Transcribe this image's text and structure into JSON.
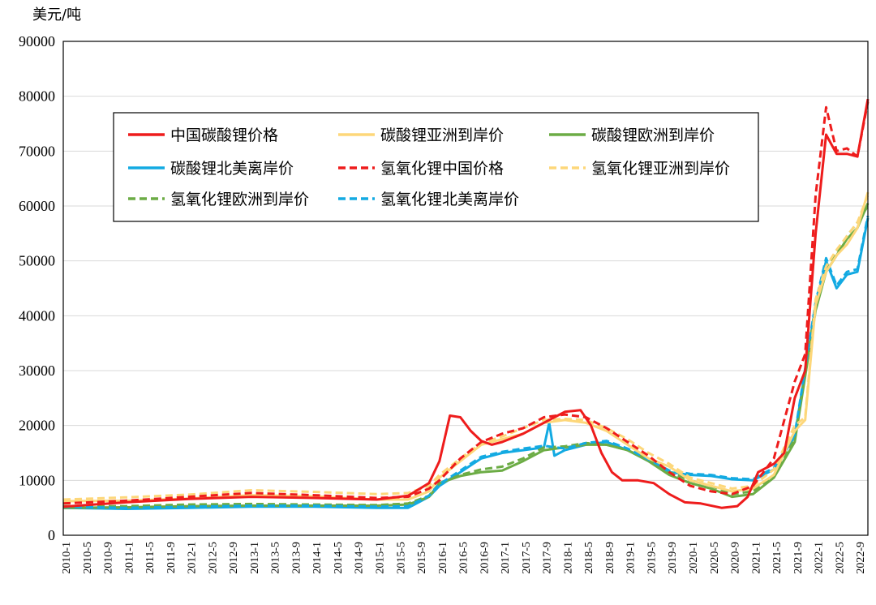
{
  "chart_data": {
    "type": "line",
    "ylabel": "美元/吨",
    "ylim": [
      0,
      90000
    ],
    "yticks": [
      0,
      10000,
      20000,
      30000,
      40000,
      50000,
      60000,
      70000,
      80000,
      90000
    ],
    "x_start": "2010-1",
    "x_end": "2022-11",
    "xticks": [
      "2010-1",
      "2010-5",
      "2010-9",
      "2011-1",
      "2011-5",
      "2011-9",
      "2012-1",
      "2012-5",
      "2012-9",
      "2013-1",
      "2013-5",
      "2013-9",
      "2014-1",
      "2014-5",
      "2014-9",
      "2015-1",
      "2015-5",
      "2015-9",
      "2016-1",
      "2016-5",
      "2016-9",
      "2017-1",
      "2017-5",
      "2017-9",
      "2018-1",
      "2018-5",
      "2018-9",
      "2019-1",
      "2019-5",
      "2019-9",
      "2020-1",
      "2020-5",
      "2020-9",
      "2021-1",
      "2021-5",
      "2021-9",
      "2022-1",
      "2022-5",
      "2022-9"
    ],
    "grid": "horizontal",
    "legend_position": "top-left",
    "series": [
      {
        "name": "中国碳酸锂价格",
        "color": "#ee1c1c",
        "dash": "solid",
        "points": [
          [
            "2010-1",
            5200
          ],
          [
            "2011-1",
            6000
          ],
          [
            "2012-1",
            6600
          ],
          [
            "2013-1",
            7000
          ],
          [
            "2014-1",
            6800
          ],
          [
            "2015-1",
            6500
          ],
          [
            "2015-7",
            7200
          ],
          [
            "2015-11",
            9500
          ],
          [
            "2016-1",
            13500
          ],
          [
            "2016-3",
            21800
          ],
          [
            "2016-5",
            21500
          ],
          [
            "2016-7",
            19000
          ],
          [
            "2016-9",
            17200
          ],
          [
            "2016-11",
            16500
          ],
          [
            "2017-1",
            17000
          ],
          [
            "2017-5",
            18500
          ],
          [
            "2017-9",
            20500
          ],
          [
            "2018-1",
            22500
          ],
          [
            "2018-4",
            22800
          ],
          [
            "2018-6",
            20000
          ],
          [
            "2018-8",
            15000
          ],
          [
            "2018-10",
            11500
          ],
          [
            "2018-12",
            10000
          ],
          [
            "2019-3",
            10000
          ],
          [
            "2019-6",
            9500
          ],
          [
            "2019-9",
            7500
          ],
          [
            "2019-12",
            6000
          ],
          [
            "2020-3",
            5800
          ],
          [
            "2020-7",
            5000
          ],
          [
            "2020-10",
            5300
          ],
          [
            "2020-12",
            7000
          ],
          [
            "2021-2",
            11500
          ],
          [
            "2021-5",
            13000
          ],
          [
            "2021-7",
            15000
          ],
          [
            "2021-9",
            25000
          ],
          [
            "2021-11",
            30000
          ],
          [
            "2022-1",
            55000
          ],
          [
            "2022-3",
            73000
          ],
          [
            "2022-5",
            69500
          ],
          [
            "2022-7",
            69500
          ],
          [
            "2022-9",
            69000
          ],
          [
            "2022-11",
            79500
          ]
        ]
      },
      {
        "name": "碳酸锂亚洲到岸价",
        "color": "#fdd77a",
        "dash": "solid",
        "points": [
          [
            "2010-1",
            6200
          ],
          [
            "2011-1",
            6300
          ],
          [
            "2012-1",
            6700
          ],
          [
            "2013-1",
            7300
          ],
          [
            "2014-1",
            7100
          ],
          [
            "2015-1",
            6500
          ],
          [
            "2015-7",
            6500
          ],
          [
            "2015-11",
            8000
          ],
          [
            "2016-1",
            10500
          ],
          [
            "2016-5",
            13500
          ],
          [
            "2016-9",
            16500
          ],
          [
            "2017-1",
            17500
          ],
          [
            "2017-5",
            18500
          ],
          [
            "2017-9",
            20500
          ],
          [
            "2018-1",
            21000
          ],
          [
            "2018-5",
            20500
          ],
          [
            "2018-9",
            19000
          ],
          [
            "2019-1",
            16500
          ],
          [
            "2019-5",
            14000
          ],
          [
            "2019-9",
            12500
          ],
          [
            "2020-1",
            10000
          ],
          [
            "2020-5",
            9000
          ],
          [
            "2020-9",
            8000
          ],
          [
            "2021-1",
            8500
          ],
          [
            "2021-5",
            11000
          ],
          [
            "2021-9",
            19000
          ],
          [
            "2021-11",
            21000
          ],
          [
            "2022-1",
            42000
          ],
          [
            "2022-3",
            48000
          ],
          [
            "2022-5",
            51000
          ],
          [
            "2022-7",
            53000
          ],
          [
            "2022-9",
            56000
          ],
          [
            "2022-11",
            62500
          ]
        ]
      },
      {
        "name": "碳酸锂欧洲到岸价",
        "color": "#6cac45",
        "dash": "solid",
        "points": [
          [
            "2010-1",
            5000
          ],
          [
            "2011-1",
            5100
          ],
          [
            "2012-1",
            5300
          ],
          [
            "2013-1",
            5400
          ],
          [
            "2014-1",
            5400
          ],
          [
            "2015-1",
            5400
          ],
          [
            "2015-7",
            5600
          ],
          [
            "2015-11",
            7000
          ],
          [
            "2016-1",
            9500
          ],
          [
            "2016-5",
            10800
          ],
          [
            "2016-9",
            11500
          ],
          [
            "2017-1",
            11800
          ],
          [
            "2017-5",
            13500
          ],
          [
            "2017-9",
            15500
          ],
          [
            "2018-1",
            16000
          ],
          [
            "2018-5",
            16500
          ],
          [
            "2018-9",
            16500
          ],
          [
            "2019-1",
            15500
          ],
          [
            "2019-5",
            13500
          ],
          [
            "2019-9",
            11000
          ],
          [
            "2020-1",
            9500
          ],
          [
            "2020-5",
            8500
          ],
          [
            "2020-9",
            7000
          ],
          [
            "2021-1",
            7500
          ],
          [
            "2021-5",
            10500
          ],
          [
            "2021-9",
            17000
          ],
          [
            "2022-1",
            41000
          ],
          [
            "2022-3",
            48000
          ],
          [
            "2022-5",
            51000
          ],
          [
            "2022-7",
            54000
          ],
          [
            "2022-9",
            56000
          ],
          [
            "2022-11",
            60500
          ]
        ]
      },
      {
        "name": "碳酸锂北美离岸价",
        "color": "#13aae2",
        "dash": "solid",
        "points": [
          [
            "2010-1",
            5000
          ],
          [
            "2011-1",
            4800
          ],
          [
            "2012-1",
            5000
          ],
          [
            "2013-1",
            5200
          ],
          [
            "2014-1",
            5200
          ],
          [
            "2015-1",
            5000
          ],
          [
            "2015-7",
            5000
          ],
          [
            "2015-11",
            7000
          ],
          [
            "2016-1",
            9000
          ],
          [
            "2016-5",
            11500
          ],
          [
            "2016-9",
            14000
          ],
          [
            "2017-1",
            15000
          ],
          [
            "2017-5",
            15500
          ],
          [
            "2017-9",
            16000
          ],
          [
            "2017-10",
            20500
          ],
          [
            "2017-11",
            14500
          ],
          [
            "2018-1",
            15500
          ],
          [
            "2018-5",
            16500
          ],
          [
            "2018-9",
            17000
          ],
          [
            "2019-1",
            15500
          ],
          [
            "2019-5",
            13500
          ],
          [
            "2019-9",
            11500
          ],
          [
            "2020-1",
            11000
          ],
          [
            "2020-5",
            10800
          ],
          [
            "2020-9",
            10200
          ],
          [
            "2021-1",
            10000
          ],
          [
            "2021-5",
            12000
          ],
          [
            "2021-9",
            18000
          ],
          [
            "2022-1",
            42000
          ],
          [
            "2022-3",
            50000
          ],
          [
            "2022-5",
            45000
          ],
          [
            "2022-7",
            47500
          ],
          [
            "2022-9",
            48000
          ],
          [
            "2022-11",
            57800
          ]
        ]
      },
      {
        "name": "氢氧化锂中国价格",
        "color": "#ee1c1c",
        "dash": "dashed",
        "points": [
          [
            "2010-1",
            5800
          ],
          [
            "2011-1",
            6300
          ],
          [
            "2012-1",
            7000
          ],
          [
            "2013-1",
            7700
          ],
          [
            "2014-1",
            7300
          ],
          [
            "2015-1",
            6800
          ],
          [
            "2015-7",
            7000
          ],
          [
            "2015-11",
            8500
          ],
          [
            "2016-1",
            10000
          ],
          [
            "2016-5",
            14000
          ],
          [
            "2016-9",
            17000
          ],
          [
            "2017-1",
            18500
          ],
          [
            "2017-5",
            19500
          ],
          [
            "2017-9",
            21500
          ],
          [
            "2018-1",
            22000
          ],
          [
            "2018-5",
            21500
          ],
          [
            "2018-9",
            19500
          ],
          [
            "2019-1",
            17000
          ],
          [
            "2019-5",
            14500
          ],
          [
            "2019-9",
            11500
          ],
          [
            "2020-1",
            9000
          ],
          [
            "2020-5",
            8000
          ],
          [
            "2020-9",
            7500
          ],
          [
            "2021-1",
            9000
          ],
          [
            "2021-5",
            14000
          ],
          [
            "2021-9",
            28000
          ],
          [
            "2021-11",
            33000
          ],
          [
            "2022-1",
            62000
          ],
          [
            "2022-3",
            78000
          ],
          [
            "2022-5",
            70000
          ],
          [
            "2022-7",
            70500
          ],
          [
            "2022-9",
            69000
          ],
          [
            "2022-11",
            79000
          ]
        ]
      },
      {
        "name": "氢氧化锂亚洲到岸价",
        "color": "#fdd77a",
        "dash": "dashed",
        "points": [
          [
            "2010-1",
            6500
          ],
          [
            "2011-1",
            6900
          ],
          [
            "2012-1",
            7400
          ],
          [
            "2013-1",
            8200
          ],
          [
            "2014-1",
            7900
          ],
          [
            "2015-1",
            7500
          ],
          [
            "2015-7",
            7700
          ],
          [
            "2015-11",
            9000
          ],
          [
            "2016-1",
            11000
          ],
          [
            "2016-5",
            14000
          ],
          [
            "2016-9",
            16800
          ],
          [
            "2017-1",
            18000
          ],
          [
            "2017-5",
            19500
          ],
          [
            "2017-9",
            21000
          ],
          [
            "2018-1",
            21200
          ],
          [
            "2018-5",
            21000
          ],
          [
            "2018-9",
            19500
          ],
          [
            "2019-1",
            17500
          ],
          [
            "2019-5",
            15000
          ],
          [
            "2019-9",
            13000
          ],
          [
            "2020-1",
            10500
          ],
          [
            "2020-5",
            9500
          ],
          [
            "2020-9",
            8500
          ],
          [
            "2021-1",
            9000
          ],
          [
            "2021-5",
            12000
          ],
          [
            "2021-9",
            20000
          ],
          [
            "2021-11",
            21500
          ],
          [
            "2022-1",
            43000
          ],
          [
            "2022-3",
            49000
          ],
          [
            "2022-5",
            52000
          ],
          [
            "2022-7",
            54500
          ],
          [
            "2022-9",
            57000
          ],
          [
            "2022-11",
            62000
          ]
        ]
      },
      {
        "name": "氢氧化锂欧洲到岸价",
        "color": "#6cac45",
        "dash": "dashed",
        "points": [
          [
            "2010-1",
            5300
          ],
          [
            "2011-1",
            5300
          ],
          [
            "2012-1",
            5600
          ],
          [
            "2013-1",
            5700
          ],
          [
            "2014-1",
            5600
          ],
          [
            "2015-1",
            5500
          ],
          [
            "2015-7",
            5800
          ],
          [
            "2015-11",
            7200
          ],
          [
            "2016-1",
            9500
          ],
          [
            "2016-5",
            11000
          ],
          [
            "2016-9",
            12000
          ],
          [
            "2017-1",
            12500
          ],
          [
            "2017-5",
            14000
          ],
          [
            "2017-9",
            16000
          ],
          [
            "2018-1",
            16200
          ],
          [
            "2018-5",
            16800
          ],
          [
            "2018-9",
            16500
          ],
          [
            "2019-1",
            15500
          ],
          [
            "2019-5",
            13800
          ],
          [
            "2019-9",
            11500
          ],
          [
            "2020-1",
            10000
          ],
          [
            "2020-5",
            9000
          ],
          [
            "2020-9",
            7500
          ],
          [
            "2021-1",
            8000
          ],
          [
            "2021-5",
            11000
          ],
          [
            "2021-9",
            17500
          ],
          [
            "2022-1",
            42000
          ],
          [
            "2022-3",
            48500
          ],
          [
            "2022-5",
            51500
          ],
          [
            "2022-7",
            54500
          ],
          [
            "2022-9",
            57000
          ],
          [
            "2022-11",
            60000
          ]
        ]
      },
      {
        "name": "氢氧化锂北美离岸价",
        "color": "#13aae2",
        "dash": "dashed",
        "points": [
          [
            "2010-1",
            5200
          ],
          [
            "2011-1",
            5000
          ],
          [
            "2012-1",
            5200
          ],
          [
            "2013-1",
            5400
          ],
          [
            "2014-1",
            5400
          ],
          [
            "2015-1",
            5200
          ],
          [
            "2015-7",
            5300
          ],
          [
            "2015-11",
            7200
          ],
          [
            "2016-1",
            9300
          ],
          [
            "2016-5",
            11800
          ],
          [
            "2016-9",
            14300
          ],
          [
            "2017-1",
            15200
          ],
          [
            "2017-5",
            15800
          ],
          [
            "2017-9",
            16300
          ],
          [
            "2018-1",
            15800
          ],
          [
            "2018-5",
            16800
          ],
          [
            "2018-9",
            17200
          ],
          [
            "2019-1",
            15800
          ],
          [
            "2019-5",
            13800
          ],
          [
            "2019-9",
            11800
          ],
          [
            "2020-1",
            11200
          ],
          [
            "2020-5",
            11000
          ],
          [
            "2020-9",
            10400
          ],
          [
            "2021-1",
            10200
          ],
          [
            "2021-5",
            12300
          ],
          [
            "2021-9",
            18300
          ],
          [
            "2022-1",
            42500
          ],
          [
            "2022-3",
            50500
          ],
          [
            "2022-5",
            45500
          ],
          [
            "2022-7",
            48000
          ],
          [
            "2022-9",
            48500
          ],
          [
            "2022-11",
            58200
          ]
        ]
      }
    ]
  }
}
